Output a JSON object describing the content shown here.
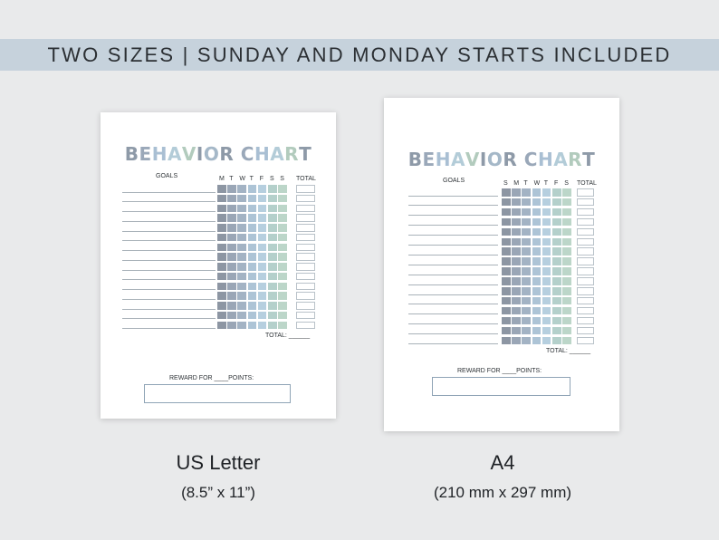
{
  "banner": {
    "text": "TWO SIZES | SUNDAY AND MONDAY STARTS INCLUDED"
  },
  "colors": {
    "background": "#e9eaeb",
    "banner": "#c6d2dc",
    "title_letters": [
      "#8e9aa8",
      "#9aa8b9",
      "#a9bfd3",
      "#b3ccd8",
      "#b2cbbd",
      "#8e9aa8",
      "#a5b8c8"
    ],
    "cell_columns": [
      "#8d96a3",
      "#9aa6b6",
      "#a3b3c4",
      "#adc4d6",
      "#b6cfdf",
      "#b4d0cb",
      "#bcd6c9"
    ]
  },
  "sheets": [
    {
      "id": "us",
      "title": "BEHAVIOR CHART",
      "goals_label": "GOALS",
      "days": [
        "M",
        "T",
        "W",
        "T",
        "F",
        "S",
        "S"
      ],
      "total_label": "TOTAL",
      "rows": 15,
      "footer_total_label": "TOTAL: ______",
      "reward_label": "REWARD FOR ____POINTS:"
    },
    {
      "id": "a4",
      "title": "BEHAVIOR CHART",
      "goals_label": "GOALS",
      "days": [
        "S",
        "M",
        "T",
        "W",
        "T",
        "F",
        "S"
      ],
      "total_label": "TOTAL",
      "rows": 16,
      "footer_total_label": "TOTAL: ______",
      "reward_label": "REWARD FOR ____POINTS:"
    }
  ],
  "captions": [
    {
      "title": "US Letter",
      "subtitle": "(8.5” x 11”)"
    },
    {
      "title": "A4",
      "subtitle": "(210 mm x 297 mm)"
    }
  ]
}
